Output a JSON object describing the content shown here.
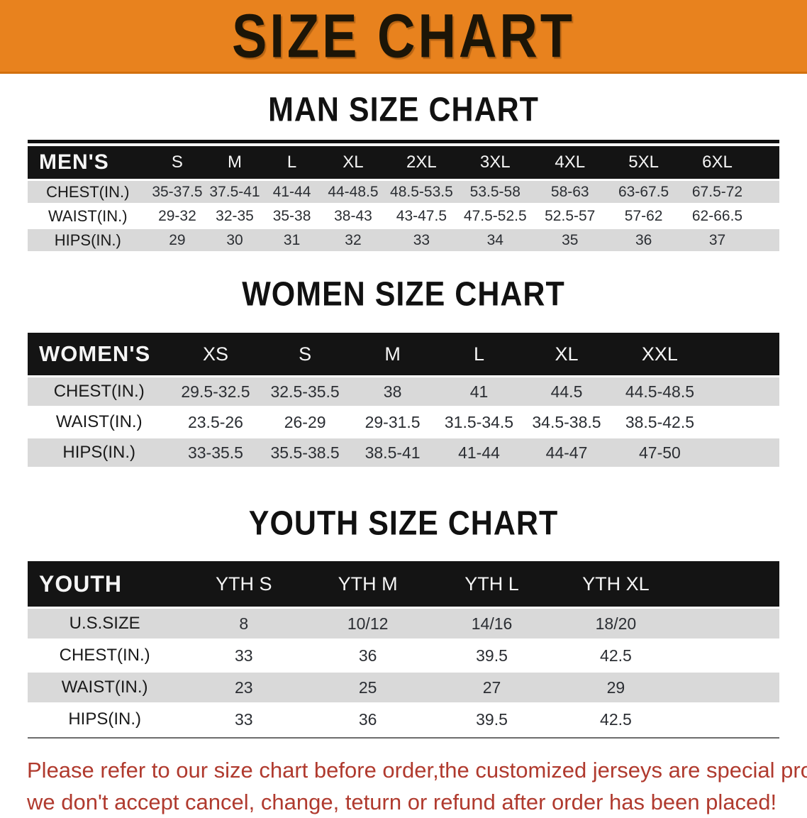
{
  "banner": {
    "title": "SIZE CHART"
  },
  "colors": {
    "banner_bg": "#e8821e",
    "header_bar": "#141414",
    "row_gray": "#d9d9d9",
    "disclaimer_red": "#b03a2e"
  },
  "sections": {
    "man": {
      "title": "MAN SIZE CHART",
      "table": {
        "corner_label": "MEN'S",
        "columns": [
          "S",
          "M",
          "L",
          "XL",
          "2XL",
          "3XL",
          "4XL",
          "5XL",
          "6XL"
        ],
        "rows": [
          {
            "label": "CHEST(IN.)",
            "values": [
              "35-37.5",
              "37.5-41",
              "41-44",
              "44-48.5",
              "48.5-53.5",
              "53.5-58",
              "58-63",
              "63-67.5",
              "67.5-72"
            ]
          },
          {
            "label": "WAIST(IN.)",
            "values": [
              "29-32",
              "32-35",
              "35-38",
              "38-43",
              "43-47.5",
              "47.5-52.5",
              "52.5-57",
              "57-62",
              "62-66.5"
            ]
          },
          {
            "label": "HIPS(IN.)",
            "values": [
              "29",
              "30",
              "31",
              "32",
              "33",
              "34",
              "35",
              "36",
              "37"
            ]
          }
        ]
      }
    },
    "women": {
      "title": "WOMEN SIZE CHART",
      "table": {
        "corner_label": "WOMEN'S",
        "columns": [
          "XS",
          "S",
          "M",
          "L",
          "XL",
          "XXL"
        ],
        "rows": [
          {
            "label": "CHEST(IN.)",
            "values": [
              "29.5-32.5",
              "32.5-35.5",
              "38",
              "41",
              "44.5",
              "44.5-48.5"
            ]
          },
          {
            "label": "WAIST(IN.)",
            "values": [
              "23.5-26",
              "26-29",
              "29-31.5",
              "31.5-34.5",
              "34.5-38.5",
              "38.5-42.5"
            ]
          },
          {
            "label": "HIPS(IN.)",
            "values": [
              "33-35.5",
              "35.5-38.5",
              "38.5-41",
              "41-44",
              "44-47",
              "47-50"
            ]
          }
        ]
      }
    },
    "youth": {
      "title": "YOUTH SIZE CHART",
      "table": {
        "corner_label": "YOUTH",
        "columns": [
          "YTH S",
          "YTH M",
          "YTH L",
          "YTH XL"
        ],
        "rows": [
          {
            "label": "U.S.SIZE",
            "values": [
              "8",
              "10/12",
              "14/16",
              "18/20"
            ]
          },
          {
            "label": "CHEST(IN.)",
            "values": [
              "33",
              "36",
              "39.5",
              "42.5"
            ]
          },
          {
            "label": "WAIST(IN.)",
            "values": [
              "23",
              "25",
              "27",
              "29"
            ]
          },
          {
            "label": "HIPS(IN.)",
            "values": [
              "33",
              "36",
              "39.5",
              "42.5"
            ]
          }
        ]
      }
    }
  },
  "disclaimer": {
    "lines": [
      "Please refer to our size chart before order,the customized jerseys are special products,",
      "we don't accept cancel, change, teturn or refund after order has been placed!"
    ]
  }
}
